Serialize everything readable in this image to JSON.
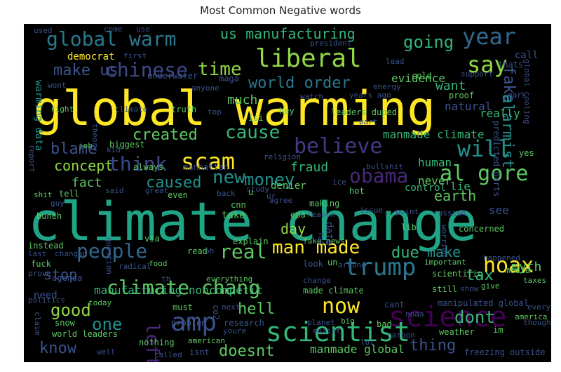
{
  "title": "Most Common Negative words",
  "words": [
    {
      "text": "climate change",
      "color": "#20a486"
    },
    {
      "text": "global warming",
      "color": "#fde725"
    },
    {
      "text": "science",
      "color": "#440154"
    },
    {
      "text": "scientist",
      "color": "#35b779"
    },
    {
      "text": "amp",
      "color": "#3b528b"
    },
    {
      "text": "hoax",
      "color": "#fde725"
    },
    {
      "text": "trump",
      "color": "#2a788e"
    },
    {
      "text": "now",
      "color": "#fde725"
    },
    {
      "text": "climate chang",
      "color": "#5ec962"
    },
    {
      "text": "man made",
      "color": "#fde725"
    },
    {
      "text": "people",
      "color": "#31688e"
    },
    {
      "text": "real",
      "color": "#5ec962"
    },
    {
      "text": "liberal",
      "color": "#90d743"
    },
    {
      "text": "global warm",
      "color": "#2a788e"
    },
    {
      "text": "year",
      "color": "#31688e"
    },
    {
      "text": "say",
      "color": "#90d743"
    },
    {
      "text": "going",
      "color": "#35b779"
    },
    {
      "text": "us manufacturing",
      "color": "#35b779"
    },
    {
      "text": "make us",
      "color": "#3b528b"
    },
    {
      "text": "chinese",
      "color": "#3e4989"
    },
    {
      "text": "time",
      "color": "#90d743"
    },
    {
      "text": "scam",
      "color": "#fde725"
    },
    {
      "text": "will",
      "color": "#21918c"
    },
    {
      "text": "believe",
      "color": "#443983"
    },
    {
      "text": "cause",
      "color": "#35b779"
    },
    {
      "text": "think",
      "color": "#3e4989"
    },
    {
      "text": "new",
      "color": "#21918c"
    },
    {
      "text": "money",
      "color": "#21918c"
    },
    {
      "text": "obama",
      "color": "#482878"
    },
    {
      "text": "al gore",
      "color": "#5ec962"
    },
    {
      "text": "created",
      "color": "#5ec962"
    },
    {
      "text": "blame",
      "color": "#3b528b"
    },
    {
      "text": "concept",
      "color": "#90d743"
    },
    {
      "text": "world order",
      "color": "#2a788e"
    },
    {
      "text": "want",
      "color": "#35b779"
    },
    {
      "text": "fake",
      "color": "#3b528b"
    },
    {
      "text": "alarmist",
      "color": "#21918c"
    },
    {
      "text": "caused",
      "color": "#21918c"
    },
    {
      "text": "fact",
      "color": "#5ec962"
    },
    {
      "text": "earth",
      "color": "#5ec962"
    },
    {
      "text": "day",
      "color": "#90d743"
    },
    {
      "text": "due",
      "color": "#35b779"
    },
    {
      "text": "make",
      "color": "#21918c"
    },
    {
      "text": "myth",
      "color": "#5ec962"
    },
    {
      "text": "tax",
      "color": "#35b779"
    },
    {
      "text": "stop",
      "color": "#3b528b"
    },
    {
      "text": "left",
      "color": "#482878"
    },
    {
      "text": "good",
      "color": "#90d743"
    },
    {
      "text": "one",
      "color": "#21918c"
    },
    {
      "text": "know",
      "color": "#3b528b"
    },
    {
      "text": "hell",
      "color": "#5ec962"
    },
    {
      "text": "dont",
      "color": "#35b779"
    },
    {
      "text": "thing",
      "color": "#3b528b"
    },
    {
      "text": "doesnt",
      "color": "#5ec962"
    },
    {
      "text": "manufacturing noncompetit",
      "color": "#35b779"
    },
    {
      "text": "manmade global",
      "color": "#5ec962"
    },
    {
      "text": "manmade climate",
      "color": "#35b779"
    },
    {
      "text": "human",
      "color": "#35b779"
    },
    {
      "text": "never",
      "color": "#5ec962"
    },
    {
      "text": "fraud",
      "color": "#35b779"
    },
    {
      "text": "control",
      "color": "#35b779"
    },
    {
      "text": "lie",
      "color": "#35b779"
    },
    {
      "text": "see",
      "color": "#3b528b"
    },
    {
      "text": "much",
      "color": "#5ec962"
    },
    {
      "text": "evidence",
      "color": "#5ec962"
    },
    {
      "text": "natural",
      "color": "#3b528b"
    },
    {
      "text": "really",
      "color": "#35b779"
    },
    {
      "text": "warming data",
      "color": "#21918c"
    },
    {
      "text": "democrat",
      "color": "#fde725"
    },
    {
      "text": "underwater",
      "color": "#3b528b"
    },
    {
      "text": "maga",
      "color": "#3b528b"
    },
    {
      "text": "president",
      "color": "#3b528b"
    },
    {
      "text": "used",
      "color": "#3b528b"
    },
    {
      "text": "come",
      "color": "#3b528b"
    },
    {
      "text": "use",
      "color": "#3b528b"
    },
    {
      "text": "call",
      "color": "#3b528b"
    },
    {
      "text": "thats",
      "color": "#3b528b"
    },
    {
      "text": "cold",
      "color": "#5ec962"
    },
    {
      "text": "proof",
      "color": "#5ec962"
    },
    {
      "text": "support",
      "color": "#3b528b"
    },
    {
      "text": "watch",
      "color": "#3b528b"
    },
    {
      "text": "years ago",
      "color": "#3b528b"
    },
    {
      "text": "leaders duped",
      "color": "#5ec962"
    },
    {
      "text": "predicted parts",
      "color": "#3b528b"
    },
    {
      "text": "wont",
      "color": "#3b528b"
    },
    {
      "text": "first",
      "color": "#3b528b"
    },
    {
      "text": "right",
      "color": "#5ec962"
    },
    {
      "text": "climate",
      "color": "#3b528b"
    },
    {
      "text": "truth",
      "color": "#5ec962"
    },
    {
      "text": "job",
      "color": "#5ec962"
    },
    {
      "text": "biggest",
      "color": "#5ec962"
    },
    {
      "text": "always",
      "color": "#5ec962"
    },
    {
      "text": "manhattan",
      "color": "#3b528b"
    },
    {
      "text": "study",
      "color": "#3b528b"
    },
    {
      "text": "denier",
      "color": "#5ec962"
    },
    {
      "text": "hey",
      "color": "#5ec962"
    },
    {
      "text": "isi",
      "color": "#5ec962"
    },
    {
      "text": "hot",
      "color": "#5ec962"
    },
    {
      "text": "ice",
      "color": "#3b528b"
    },
    {
      "text": "tell",
      "color": "#5ec962"
    },
    {
      "text": "said",
      "color": "#3b528b"
    },
    {
      "text": "great",
      "color": "#3b528b"
    },
    {
      "text": "even",
      "color": "#5ec962"
    },
    {
      "text": "back",
      "color": "#3b528b"
    },
    {
      "text": "cnn",
      "color": "#5ec962"
    },
    {
      "text": "agree",
      "color": "#3b528b"
    },
    {
      "text": "take",
      "color": "#5ec962"
    },
    {
      "text": "making",
      "color": "#5ec962"
    },
    {
      "text": "epa",
      "color": "#5ec962"
    },
    {
      "text": "issue",
      "color": "#3b528b"
    },
    {
      "text": "point",
      "color": "#3b528b"
    },
    {
      "text": "lib",
      "color": "#5ec962"
    },
    {
      "text": "russian",
      "color": "#3b528b"
    },
    {
      "text": "concerned",
      "color": "#5ec962"
    },
    {
      "text": "worried",
      "color": "#3b528b"
    },
    {
      "text": "shit",
      "color": "#5ec962"
    },
    {
      "text": "bunch",
      "color": "#5ec962"
    },
    {
      "text": "guy",
      "color": "#3b528b"
    },
    {
      "text": "instead",
      "color": "#5ec962"
    },
    {
      "text": "last",
      "color": "#3b528b"
    },
    {
      "text": "changed",
      "color": "#3b528b"
    },
    {
      "text": "fuck",
      "color": "#5ec962"
    },
    {
      "text": "prove",
      "color": "#3b528b"
    },
    {
      "text": "food",
      "color": "#5ec962"
    },
    {
      "text": "read",
      "color": "#5ec962"
    },
    {
      "text": "oh",
      "color": "#3b528b"
    },
    {
      "text": "via",
      "color": "#5ec962"
    },
    {
      "text": "explain",
      "color": "#5ec962"
    },
    {
      "text": "fake news",
      "color": "#5ec962"
    },
    {
      "text": "un",
      "color": "#5ec962"
    },
    {
      "text": "around",
      "color": "#3b528b"
    },
    {
      "text": "look",
      "color": "#3b528b"
    },
    {
      "text": "important",
      "color": "#5ec962"
    },
    {
      "text": "happened",
      "color": "#3b528b"
    },
    {
      "text": "media",
      "color": "#5ec962"
    },
    {
      "text": "taxes",
      "color": "#5ec962"
    },
    {
      "text": "scientific",
      "color": "#5ec962"
    },
    {
      "text": "agenda",
      "color": "#3b528b"
    },
    {
      "text": "everything",
      "color": "#5ec962"
    },
    {
      "text": "change",
      "color": "#3b528b"
    },
    {
      "text": "still",
      "color": "#5ec962"
    },
    {
      "text": "show",
      "color": "#3b528b"
    },
    {
      "text": "give",
      "color": "#5ec962"
    },
    {
      "text": "need",
      "color": "#3b528b"
    },
    {
      "text": "must",
      "color": "#5ec962"
    },
    {
      "text": "today",
      "color": "#5ec962"
    },
    {
      "text": "co2",
      "color": "#3b528b"
    },
    {
      "text": "made climate",
      "color": "#5ec962"
    },
    {
      "text": "cant",
      "color": "#3b528b"
    },
    {
      "text": "manipulated global",
      "color": "#3b528b"
    },
    {
      "text": "every",
      "color": "#3b528b"
    },
    {
      "text": "snow",
      "color": "#5ec962"
    },
    {
      "text": "problem",
      "color": "#3b528b"
    },
    {
      "text": "research",
      "color": "#3b528b"
    },
    {
      "text": "noaa",
      "color": "#3b528b"
    },
    {
      "text": "bad",
      "color": "#5ec962"
    },
    {
      "text": "america",
      "color": "#5ec962"
    },
    {
      "text": "claim",
      "color": "#3b528b"
    },
    {
      "text": "world leaders",
      "color": "#5ec962"
    },
    {
      "text": "youre",
      "color": "#3b528b"
    },
    {
      "text": "planet",
      "color": "#3b528b"
    },
    {
      "text": "enlist",
      "color": "#3b528b"
    },
    {
      "text": "weather",
      "color": "#5ec962"
    },
    {
      "text": "im",
      "color": "#5ec962"
    },
    {
      "text": "nothing",
      "color": "#5ec962"
    },
    {
      "text": "american",
      "color": "#5ec962"
    },
    {
      "text": "called",
      "color": "#3b528b"
    },
    {
      "text": "isnt",
      "color": "#3b528b"
    },
    {
      "text": "well",
      "color": "#3b528b"
    },
    {
      "text": "freezing outside",
      "color": "#3b528b"
    },
    {
      "text": "carbon",
      "color": "#3b528b"
    },
    {
      "text": "big",
      "color": "#5ec962"
    },
    {
      "text": "yes",
      "color": "#5ec962"
    },
    {
      "text": "kid",
      "color": "#3b528b"
    },
    {
      "text": "part",
      "color": "#3b528b"
    },
    {
      "text": "energy",
      "color": "#3b528b"
    },
    {
      "text": "global cooling",
      "color": "#3b528b"
    },
    {
      "text": "anyone",
      "color": "#3b528b"
    },
    {
      "text": "report",
      "color": "#3b528b"
    },
    {
      "text": "theory",
      "color": "#3b528b"
    },
    {
      "text": "religion",
      "color": "#3b528b"
    },
    {
      "text": "bullshit",
      "color": "#3b528b"
    },
    {
      "text": "question",
      "color": "#3b528b"
    },
    {
      "text": "th",
      "color": "#3b528b"
    },
    {
      "text": "reason",
      "color": "#3b528b"
    },
    {
      "text": "next",
      "color": "#3b528b"
    },
    {
      "text": "thought",
      "color": "#3b528b"
    },
    {
      "text": "politics",
      "color": "#3b528b"
    },
    {
      "text": "fak",
      "color": "#3b528b"
    },
    {
      "text": "ur",
      "color": "#3b528b"
    },
    {
      "text": "u",
      "color": "#5ec962"
    },
    {
      "text": "top",
      "color": "#3b528b"
    },
    {
      "text": "radical",
      "color": "#3b528b"
    },
    {
      "text": "lol",
      "color": "#3b528b"
    },
    {
      "text": "mark",
      "color": "#3b528b"
    },
    {
      "text": "lead",
      "color": "#3b528b"
    },
    {
      "text": "data",
      "color": "#3b528b"
    }
  ]
}
